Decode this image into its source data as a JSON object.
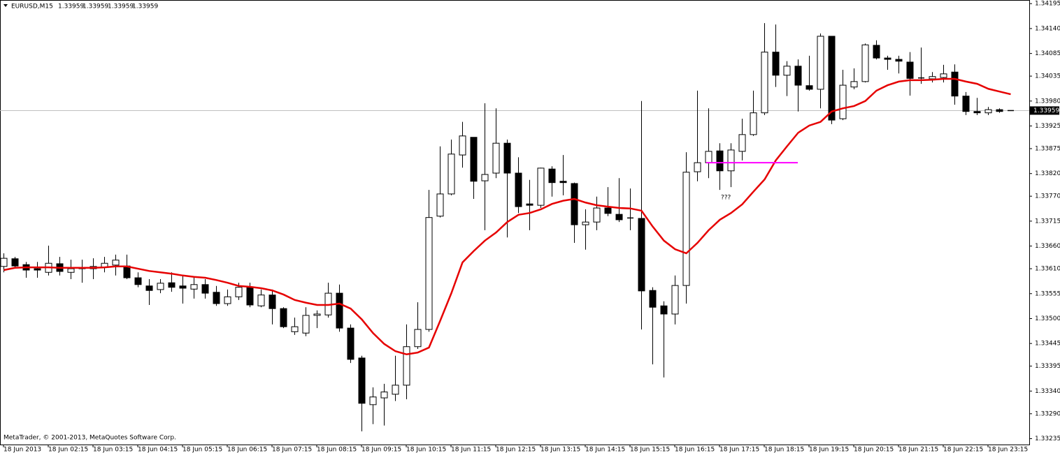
{
  "chart_data": {
    "type": "candlestick",
    "title": "EURUSD,M15",
    "header_values": [
      1.33959,
      1.33959,
      1.33959,
      1.33959
    ],
    "footer": "MetaTrader, © 2001-2013, MetaQuotes Software Corp.",
    "up_color": "#ffffff",
    "down_color": "#000000",
    "outline_color": "#000000",
    "categories": [
      "18 Jun 2013",
      null,
      null,
      null,
      "18 Jun 02:15",
      null,
      null,
      null,
      "18 Jun 03:15",
      null,
      null,
      null,
      "18 Jun 04:15",
      null,
      null,
      null,
      "18 Jun 05:15",
      null,
      null,
      null,
      "18 Jun 06:15",
      null,
      null,
      null,
      "18 Jun 07:15",
      null,
      null,
      null,
      "18 Jun 08:15",
      null,
      null,
      null,
      "18 Jun 09:15",
      null,
      null,
      null,
      "18 Jun 10:15",
      null,
      null,
      null,
      "18 Jun 11:15",
      null,
      null,
      null,
      "18 Jun 12:15",
      null,
      null,
      null,
      "18 Jun 13:15",
      null,
      null,
      null,
      "18 Jun 14:15",
      null,
      null,
      null,
      "18 Jun 15:15",
      null,
      null,
      null,
      "18 Jun 16:15",
      null,
      null,
      null,
      "18 Jun 17:15",
      null,
      null,
      null,
      "18 Jun 18:15",
      null,
      null,
      null,
      "18 Jun 19:15",
      null,
      null,
      null,
      "18 Jun 20:15",
      null,
      null,
      null,
      "18 Jun 21:15",
      null,
      null,
      null,
      "18 Jun 22:15",
      null,
      null,
      null,
      "18 Jun 23:15",
      null,
      null
    ],
    "open": [
      1.33615,
      1.33632,
      1.33619,
      1.3361,
      1.33602,
      1.33621,
      1.33602,
      1.3361,
      1.3361,
      1.33613,
      1.33618,
      1.33616,
      1.3359,
      1.33572,
      1.33564,
      1.33579,
      1.33572,
      1.33565,
      1.33575,
      1.33558,
      1.33533,
      1.33548,
      1.3357,
      1.33528,
      1.33552,
      1.33522,
      1.33471,
      1.33468,
      1.33507,
      1.33508,
      1.33556,
      1.33479,
      1.33413,
      1.3331,
      1.33325,
      1.33333,
      1.33353,
      1.33438,
      1.33476,
      1.33726,
      1.33775,
      1.33861,
      1.339,
      1.33804,
      1.33821,
      1.33887,
      1.33821,
      1.33753,
      1.3375,
      1.3383,
      1.33803,
      1.33798,
      1.33707,
      1.33713,
      1.33744,
      1.3373,
      1.33723,
      1.33721,
      1.33562,
      1.33528,
      1.3351,
      1.33573,
      1.33824,
      1.33844,
      1.3387,
      1.33826,
      1.33869,
      1.33906,
      1.33954,
      1.34088,
      1.34037,
      1.34057,
      1.34014,
      1.34006,
      1.34123,
      1.33941,
      1.34011,
      1.34023,
      1.34103,
      1.34075,
      1.34072,
      1.34066,
      1.34032,
      1.34029,
      1.34032,
      1.34044,
      1.33991,
      1.33957,
      1.33954,
      1.33961,
      1.33959
    ],
    "high": [
      1.33644,
      1.33636,
      1.33625,
      1.33625,
      1.33661,
      1.33636,
      1.3363,
      1.3363,
      1.33633,
      1.33636,
      1.33641,
      1.33641,
      1.33602,
      1.33587,
      1.33587,
      1.33602,
      1.33595,
      1.3359,
      1.33587,
      1.33572,
      1.33564,
      1.33579,
      1.33579,
      1.33564,
      1.33564,
      1.33525,
      1.33502,
      1.33525,
      1.33518,
      1.33579,
      1.33575,
      1.33487,
      1.33418,
      1.33348,
      1.33356,
      1.33418,
      1.33487,
      1.33536,
      1.33784,
      1.3388,
      1.33895,
      1.33934,
      1.339,
      1.33975,
      1.33964,
      1.33895,
      1.33856,
      1.33806,
      1.33833,
      1.33836,
      1.33861,
      1.338,
      1.33741,
      1.33769,
      1.3379,
      1.3381,
      1.33787,
      1.3398,
      1.33569,
      1.33538,
      1.33595,
      1.33867,
      1.34003,
      1.33964,
      1.33887,
      1.33887,
      1.33941,
      1.34003,
      1.34152,
      1.34149,
      1.34068,
      1.34072,
      1.3408,
      1.34129,
      1.34123,
      1.34049,
      1.34052,
      1.34107,
      1.34114,
      1.3408,
      1.3408,
      1.34088,
      1.34098,
      1.34044,
      1.3406,
      1.34061,
      1.34,
      1.33987,
      1.33967,
      1.33964,
      1.33959
    ],
    "low": [
      1.33602,
      1.3361,
      1.3359,
      1.3359,
      1.33595,
      1.33595,
      1.33587,
      1.33579,
      1.33587,
      1.33602,
      1.33595,
      1.33587,
      1.33569,
      1.3353,
      1.33556,
      1.33559,
      1.33533,
      1.33544,
      1.33544,
      1.33528,
      1.33528,
      1.33541,
      1.33525,
      1.33525,
      1.33487,
      1.33479,
      1.33464,
      1.33461,
      1.33479,
      1.33502,
      1.33471,
      1.33402,
      1.33251,
      1.33267,
      1.33264,
      1.33318,
      1.33322,
      1.33433,
      1.33471,
      1.33723,
      1.33772,
      1.33833,
      1.33764,
      1.33695,
      1.3381,
      1.33679,
      1.33733,
      1.33695,
      1.33744,
      1.33769,
      1.33772,
      1.33667,
      1.33652,
      1.33695,
      1.33726,
      1.33713,
      1.33695,
      1.33476,
      1.33399,
      1.3337,
      1.33487,
      1.33533,
      1.33803,
      1.3381,
      1.33784,
      1.3379,
      1.33849,
      1.33903,
      1.33949,
      1.34011,
      1.33991,
      1.33957,
      1.34003,
      1.33964,
      1.33929,
      1.33938,
      1.34006,
      1.34021,
      1.34072,
      1.34049,
      1.34041,
      1.33992,
      1.34018,
      1.34021,
      1.34021,
      1.33972,
      1.33949,
      1.33949,
      1.33949,
      1.33954,
      1.33959
    ],
    "close": [
      1.33633,
      1.33616,
      1.33607,
      1.33607,
      1.33622,
      1.33604,
      1.3361,
      1.33613,
      1.33615,
      1.33622,
      1.33629,
      1.3359,
      1.33575,
      1.33562,
      1.33578,
      1.33569,
      1.33567,
      1.33575,
      1.33556,
      1.33533,
      1.33548,
      1.33569,
      1.3353,
      1.33552,
      1.33522,
      1.33482,
      1.33482,
      1.33507,
      1.3351,
      1.33556,
      1.33479,
      1.3341,
      1.33313,
      1.33327,
      1.33338,
      1.33353,
      1.33438,
      1.33476,
      1.33723,
      1.33775,
      1.33863,
      1.33903,
      1.33803,
      1.33818,
      1.33887,
      1.33821,
      1.33747,
      1.3375,
      1.33832,
      1.338,
      1.338,
      1.33707,
      1.33713,
      1.33744,
      1.33732,
      1.33718,
      1.33721,
      1.33561,
      1.33525,
      1.3351,
      1.33573,
      1.33823,
      1.33844,
      1.33869,
      1.33826,
      1.33872,
      1.33906,
      1.33954,
      1.34088,
      1.34037,
      1.34057,
      1.34015,
      1.34006,
      1.34123,
      1.33938,
      1.34015,
      1.34023,
      1.34104,
      1.34075,
      1.34072,
      1.34068,
      1.3403,
      1.3403,
      1.34034,
      1.3404,
      1.33991,
      1.33957,
      1.33954,
      1.33961,
      1.33957,
      1.33959
    ],
    "moving_average": {
      "color": "#e60000",
      "values": [
        1.33607,
        1.33612,
        1.33613,
        1.33613,
        1.33613,
        1.33612,
        1.33612,
        1.33612,
        1.33612,
        1.33613,
        1.33615,
        1.33615,
        1.3361,
        1.33605,
        1.33602,
        1.33599,
        1.33595,
        1.33592,
        1.3359,
        1.33585,
        1.33579,
        1.33572,
        1.3357,
        1.33567,
        1.33562,
        1.33553,
        1.33541,
        1.33535,
        1.3353,
        1.3353,
        1.33533,
        1.33522,
        1.33498,
        1.33468,
        1.33444,
        1.33428,
        1.33421,
        1.33425,
        1.33436,
        1.33495,
        1.33556,
        1.33624,
        1.33649,
        1.33672,
        1.3369,
        1.33713,
        1.33729,
        1.33733,
        1.33741,
        1.33753,
        1.3376,
        1.33764,
        1.33756,
        1.3375,
        1.33747,
        1.33744,
        1.33743,
        1.33738,
        1.33703,
        1.33672,
        1.33653,
        1.33644,
        1.33667,
        1.33695,
        1.33718,
        1.33733,
        1.33752,
        1.3378,
        1.33807,
        1.33849,
        1.3388,
        1.3391,
        1.33926,
        1.33934,
        1.33957,
        1.33964,
        1.33969,
        1.3398,
        1.34003,
        1.34015,
        1.34023,
        1.34026,
        1.34026,
        1.34027,
        1.34029,
        1.34029,
        1.34023,
        1.34018,
        1.34007,
        1.34001,
        1.33995
      ]
    },
    "horizontal_line": {
      "value": 1.33844,
      "color": "#ff00ff"
    },
    "annotation": "???",
    "current_price": 1.33959,
    "ylim": [
      1.33222,
      1.34203
    ],
    "yticks": [
      1.34195,
      {
        "value": 1.3414,
        "label": "1.34140"
      },
      1.34085,
      1.34035,
      {
        "value": 1.3398,
        "label": "1.33980"
      },
      1.33925,
      1.33875,
      {
        "value": 1.3382,
        "label": "1.33820"
      },
      {
        "value": 1.3377,
        "label": "1.33770"
      },
      1.33715,
      {
        "value": 1.3366,
        "label": "1.33660"
      },
      {
        "value": 1.3361,
        "label": "1.33610"
      },
      1.33555,
      {
        "value": 1.335,
        "label": "1.33500"
      },
      1.33445,
      1.33395,
      {
        "value": 1.3334,
        "label": "1.33340"
      },
      {
        "value": 1.3329,
        "label": "1.33290"
      },
      1.33235
    ]
  }
}
